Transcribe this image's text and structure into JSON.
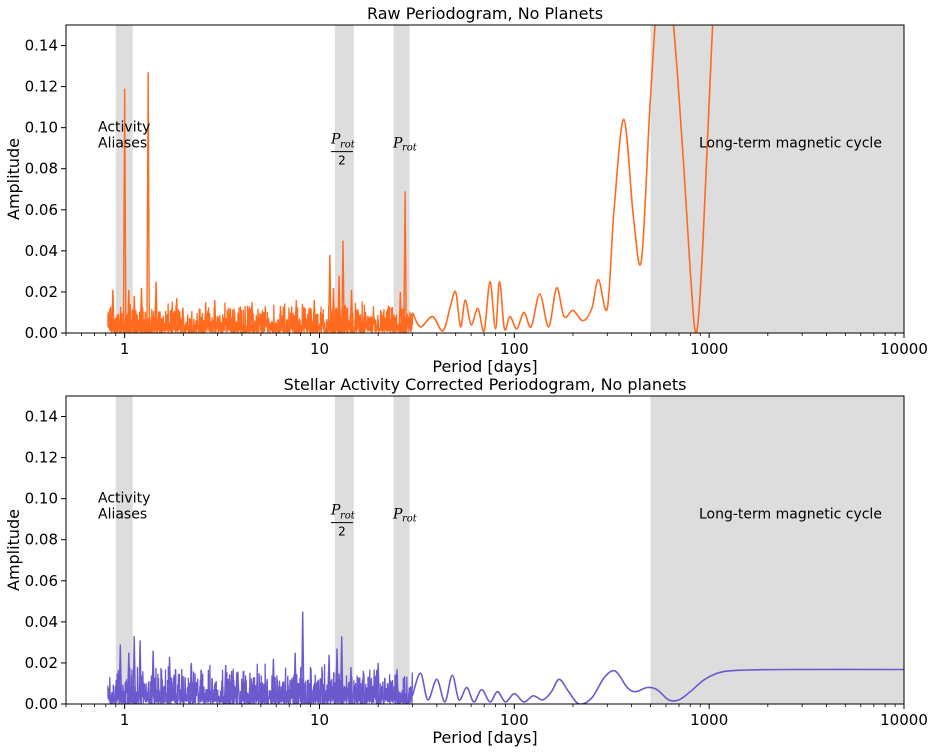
{
  "chart_data": [
    {
      "type": "line",
      "title": "Raw Periodogram, No Planets",
      "xlabel": "Period [days]",
      "ylabel": "Amplitude",
      "xscale": "log",
      "xlim": [
        0.5,
        10000
      ],
      "ylim": [
        0,
        0.15
      ],
      "x_ticks": [
        1,
        10,
        100,
        1000,
        10000
      ],
      "x_tick_labels": [
        "1",
        "10",
        "100",
        "1000",
        "10000"
      ],
      "y_ticks": [
        0,
        0.02,
        0.04,
        0.06,
        0.08,
        0.1,
        0.12,
        0.14
      ],
      "y_tick_labels": [
        "0.00",
        "0.02",
        "0.04",
        "0.06",
        "0.08",
        "0.10",
        "0.12",
        "0.14"
      ],
      "grid": false,
      "shaded_regions": [
        {
          "name": "activity-aliases",
          "x": [
            0.9,
            1.1
          ]
        },
        {
          "name": "half-rotation",
          "x": [
            12,
            15
          ]
        },
        {
          "name": "rotation",
          "x": [
            24,
            29
          ]
        },
        {
          "name": "long-term-cycle",
          "x": [
            500,
            10000
          ]
        }
      ],
      "annotations": {
        "activity": [
          "Activity",
          "Aliases"
        ],
        "prot": "P",
        "rot_sub": "rot",
        "half_den": "2",
        "long_term": "Long-term magnetic cycle"
      },
      "series": [
        {
          "color": "#ff6a1f",
          "peaks": [
            {
              "x": 0.87,
              "y": 0.021
            },
            {
              "x": 1.0,
              "y": 0.119
            },
            {
              "x": 1.32,
              "y": 0.127
            },
            {
              "x": 1.05,
              "y": 0.021
            },
            {
              "x": 1.22,
              "y": 0.022
            },
            {
              "x": 1.45,
              "y": 0.025
            },
            {
              "x": 1.12,
              "y": 0.018
            },
            {
              "x": 1.85,
              "y": 0.017
            },
            {
              "x": 2.9,
              "y": 0.016
            },
            {
              "x": 4.5,
              "y": 0.015
            },
            {
              "x": 7.6,
              "y": 0.016
            },
            {
              "x": 11.3,
              "y": 0.038
            },
            {
              "x": 11.8,
              "y": 0.022
            },
            {
              "x": 13.2,
              "y": 0.045
            },
            {
              "x": 12.6,
              "y": 0.028
            },
            {
              "x": 14.6,
              "y": 0.021
            },
            {
              "x": 27.5,
              "y": 0.069
            },
            {
              "x": 26.0,
              "y": 0.02
            },
            {
              "x": 9.4,
              "y": 0.016
            }
          ],
          "smooth_curve": [
            {
              "x": 30,
              "y": 0.01
            },
            {
              "x": 33,
              "y": 0.003
            },
            {
              "x": 38,
              "y": 0.008
            },
            {
              "x": 43,
              "y": 0.001
            },
            {
              "x": 47,
              "y": 0.013
            },
            {
              "x": 50,
              "y": 0.02
            },
            {
              "x": 53,
              "y": 0.003
            },
            {
              "x": 56,
              "y": 0.016
            },
            {
              "x": 60,
              "y": 0.004
            },
            {
              "x": 65,
              "y": 0.012
            },
            {
              "x": 70,
              "y": 0.001
            },
            {
              "x": 75,
              "y": 0.025
            },
            {
              "x": 80,
              "y": 0.002
            },
            {
              "x": 84,
              "y": 0.025
            },
            {
              "x": 89,
              "y": 0.002
            },
            {
              "x": 95,
              "y": 0.008
            },
            {
              "x": 103,
              "y": 0.002
            },
            {
              "x": 112,
              "y": 0.01
            },
            {
              "x": 122,
              "y": 0.003
            },
            {
              "x": 135,
              "y": 0.019
            },
            {
              "x": 150,
              "y": 0.003
            },
            {
              "x": 165,
              "y": 0.022
            },
            {
              "x": 180,
              "y": 0.008
            },
            {
              "x": 200,
              "y": 0.011
            },
            {
              "x": 225,
              "y": 0.006
            },
            {
              "x": 250,
              "y": 0.012
            },
            {
              "x": 270,
              "y": 0.026
            },
            {
              "x": 300,
              "y": 0.012
            },
            {
              "x": 325,
              "y": 0.06
            },
            {
              "x": 365,
              "y": 0.104
            },
            {
              "x": 410,
              "y": 0.055
            },
            {
              "x": 450,
              "y": 0.036
            },
            {
              "x": 500,
              "y": 0.115
            },
            {
              "x": 560,
              "y": 0.175
            },
            {
              "x": 640,
              "y": 0.16
            },
            {
              "x": 730,
              "y": 0.09
            },
            {
              "x": 800,
              "y": 0.03
            },
            {
              "x": 860,
              "y": 0.0
            },
            {
              "x": 930,
              "y": 0.045
            },
            {
              "x": 1030,
              "y": 0.14
            },
            {
              "x": 1150,
              "y": 0.23
            }
          ]
        }
      ]
    },
    {
      "type": "line",
      "title": "Stellar Activity Corrected Periodogram, No planets",
      "xlabel": "Period [days]",
      "ylabel": "Amplitude",
      "xscale": "log",
      "xlim": [
        0.5,
        10000
      ],
      "ylim": [
        0,
        0.15
      ],
      "x_ticks": [
        1,
        10,
        100,
        1000,
        10000
      ],
      "x_tick_labels": [
        "1",
        "10",
        "100",
        "1000",
        "10000"
      ],
      "y_ticks": [
        0,
        0.02,
        0.04,
        0.06,
        0.08,
        0.1,
        0.12,
        0.14
      ],
      "y_tick_labels": [
        "0.00",
        "0.02",
        "0.04",
        "0.06",
        "0.08",
        "0.10",
        "0.12",
        "0.14"
      ],
      "grid": false,
      "shaded_regions": [
        {
          "name": "activity-aliases",
          "x": [
            0.9,
            1.1
          ]
        },
        {
          "name": "half-rotation",
          "x": [
            12,
            15
          ]
        },
        {
          "name": "rotation",
          "x": [
            24,
            29
          ]
        },
        {
          "name": "long-term-cycle",
          "x": [
            500,
            10000
          ]
        }
      ],
      "annotations": {
        "activity": [
          "Activity",
          "Aliases"
        ],
        "prot": "P",
        "rot_sub": "rot",
        "half_den": "2",
        "long_term": "Long-term magnetic cycle"
      },
      "series": [
        {
          "color": "#6a5acd",
          "peaks": [
            {
              "x": 0.95,
              "y": 0.029
            },
            {
              "x": 1.12,
              "y": 0.033
            },
            {
              "x": 1.2,
              "y": 0.031
            },
            {
              "x": 1.05,
              "y": 0.025
            },
            {
              "x": 1.4,
              "y": 0.026
            },
            {
              "x": 1.7,
              "y": 0.023
            },
            {
              "x": 2.2,
              "y": 0.02
            },
            {
              "x": 3.3,
              "y": 0.019
            },
            {
              "x": 5.8,
              "y": 0.022
            },
            {
              "x": 8.2,
              "y": 0.045
            },
            {
              "x": 7.5,
              "y": 0.025
            },
            {
              "x": 11.2,
              "y": 0.024
            },
            {
              "x": 13.0,
              "y": 0.033
            },
            {
              "x": 12.3,
              "y": 0.027
            },
            {
              "x": 14.5,
              "y": 0.018
            },
            {
              "x": 20.0,
              "y": 0.02
            },
            {
              "x": 25.0,
              "y": 0.017
            }
          ],
          "smooth_curve": [
            {
              "x": 30,
              "y": 0.004
            },
            {
              "x": 33,
              "y": 0.015
            },
            {
              "x": 36,
              "y": 0.002
            },
            {
              "x": 40,
              "y": 0.012
            },
            {
              "x": 44,
              "y": 0.001
            },
            {
              "x": 48,
              "y": 0.014
            },
            {
              "x": 52,
              "y": 0.002
            },
            {
              "x": 57,
              "y": 0.008
            },
            {
              "x": 62,
              "y": 0.001
            },
            {
              "x": 68,
              "y": 0.007
            },
            {
              "x": 75,
              "y": 0.001
            },
            {
              "x": 82,
              "y": 0.006
            },
            {
              "x": 90,
              "y": 0.001
            },
            {
              "x": 100,
              "y": 0.005
            },
            {
              "x": 112,
              "y": 0.001
            },
            {
              "x": 125,
              "y": 0.004
            },
            {
              "x": 140,
              "y": 0.002
            },
            {
              "x": 155,
              "y": 0.006
            },
            {
              "x": 170,
              "y": 0.012
            },
            {
              "x": 190,
              "y": 0.006
            },
            {
              "x": 215,
              "y": 0.0
            },
            {
              "x": 250,
              "y": 0.003
            },
            {
              "x": 290,
              "y": 0.013
            },
            {
              "x": 330,
              "y": 0.016
            },
            {
              "x": 380,
              "y": 0.008
            },
            {
              "x": 420,
              "y": 0.006
            },
            {
              "x": 480,
              "y": 0.008
            },
            {
              "x": 540,
              "y": 0.007
            },
            {
              "x": 620,
              "y": 0.002
            },
            {
              "x": 700,
              "y": 0.002
            },
            {
              "x": 800,
              "y": 0.006
            },
            {
              "x": 950,
              "y": 0.012
            },
            {
              "x": 1150,
              "y": 0.0155
            },
            {
              "x": 1500,
              "y": 0.0165
            },
            {
              "x": 2500,
              "y": 0.0168
            },
            {
              "x": 10000,
              "y": 0.0168
            }
          ]
        }
      ]
    }
  ]
}
